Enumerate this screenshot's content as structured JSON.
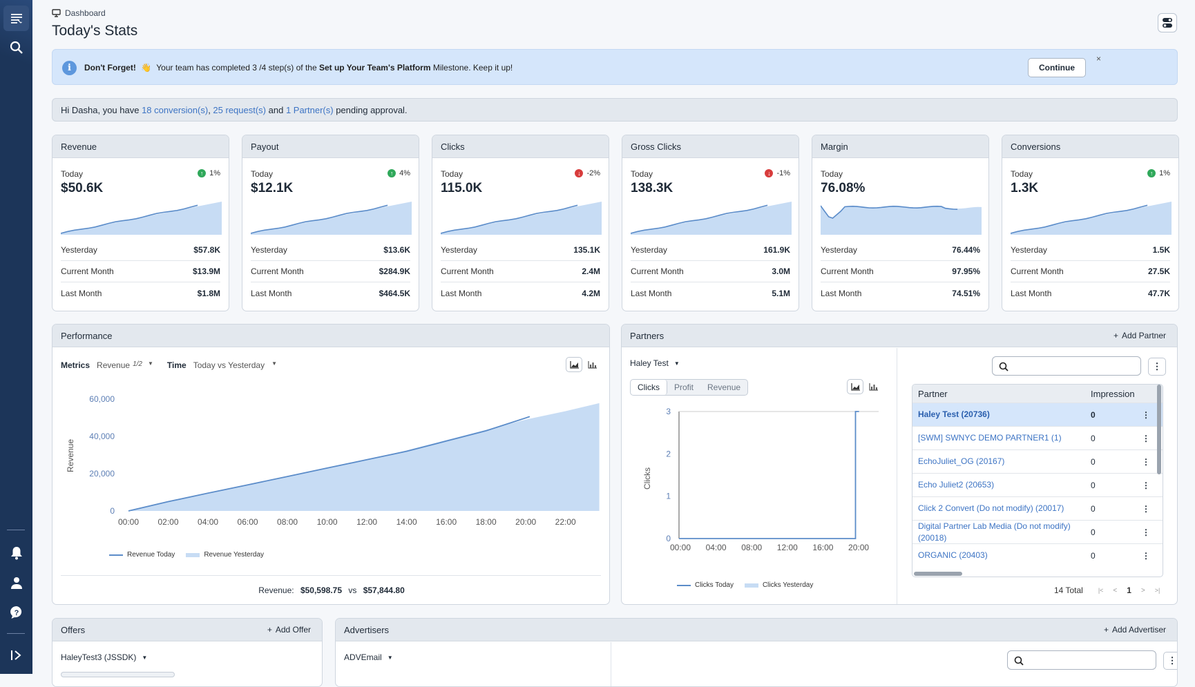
{
  "breadcrumb": "Dashboard",
  "page_title": "Today's Stats",
  "banner": {
    "prefix": "Don't Forget!",
    "emoji": "👋",
    "text_a": "Your team has completed 3 /4 step(s) of the ",
    "milestone": "Set up Your Team's Platform",
    "text_b": " Milestone. Keep it up!",
    "continue_label": "Continue",
    "close": "×"
  },
  "pending": {
    "a": "Hi Dasha, you have ",
    "conversions": "18 conversion(s)",
    "sep1": ", ",
    "requests": "25 request(s)",
    "and": " and ",
    "partners": "1 Partner(s)",
    "tail": " pending approval."
  },
  "stats": [
    {
      "title": "Revenue",
      "today_label": "Today",
      "change": "1%",
      "trend": "up",
      "value": "$50.6K",
      "rows": [
        {
          "k": "Yesterday",
          "v": "$57.8K"
        },
        {
          "k": "Current Month",
          "v": "$13.9M"
        },
        {
          "k": "Last Month",
          "v": "$1.8M"
        }
      ]
    },
    {
      "title": "Payout",
      "today_label": "Today",
      "change": "4%",
      "trend": "up",
      "value": "$12.1K",
      "rows": [
        {
          "k": "Yesterday",
          "v": "$13.6K"
        },
        {
          "k": "Current Month",
          "v": "$284.9K"
        },
        {
          "k": "Last Month",
          "v": "$464.5K"
        }
      ]
    },
    {
      "title": "Clicks",
      "today_label": "Today",
      "change": "-2%",
      "trend": "down",
      "value": "115.0K",
      "rows": [
        {
          "k": "Yesterday",
          "v": "135.1K"
        },
        {
          "k": "Current Month",
          "v": "2.4M"
        },
        {
          "k": "Last Month",
          "v": "4.2M"
        }
      ]
    },
    {
      "title": "Gross Clicks",
      "today_label": "Today",
      "change": "-1%",
      "trend": "down",
      "value": "138.3K",
      "rows": [
        {
          "k": "Yesterday",
          "v": "161.9K"
        },
        {
          "k": "Current Month",
          "v": "3.0M"
        },
        {
          "k": "Last Month",
          "v": "5.1M"
        }
      ]
    },
    {
      "title": "Margin",
      "today_label": "Today",
      "change": "",
      "trend": "none",
      "value": "76.08%",
      "rows": [
        {
          "k": "Yesterday",
          "v": "76.44%"
        },
        {
          "k": "Current Month",
          "v": "97.95%"
        },
        {
          "k": "Last Month",
          "v": "74.51%"
        }
      ]
    },
    {
      "title": "Conversions",
      "today_label": "Today",
      "change": "1%",
      "trend": "up",
      "value": "1.3K",
      "rows": [
        {
          "k": "Yesterday",
          "v": "1.5K"
        },
        {
          "k": "Current Month",
          "v": "27.5K"
        },
        {
          "k": "Last Month",
          "v": "47.7K"
        }
      ]
    }
  ],
  "performance": {
    "title": "Performance",
    "metrics_label": "Metrics",
    "metrics_value": "Revenue",
    "metrics_count": "1/2",
    "time_label": "Time",
    "time_value": "Today vs Yesterday",
    "legend_today": "Revenue Today",
    "legend_yesterday": "Revenue Yesterday",
    "summary_label": "Revenue:",
    "summary_today": "$50,598.75",
    "summary_vs": "vs",
    "summary_yesterday": "$57,844.80"
  },
  "partners": {
    "title": "Partners",
    "add_label": "Add Partner",
    "selected_partner": "Haley Test",
    "segments": [
      "Clicks",
      "Profit",
      "Revenue"
    ],
    "legend_today": "Clicks Today",
    "legend_yesterday": "Clicks Yesterday",
    "col_partner": "Partner",
    "col_impressions": "Impression",
    "rows": [
      {
        "name": "Haley Test (20736)",
        "impressions": "0"
      },
      {
        "name": "[SWM] SWNYC DEMO PARTNER1 (1)",
        "impressions": "0"
      },
      {
        "name": "EchoJuliet_OG (20167)",
        "impressions": "0"
      },
      {
        "name": "Echo Juliet2 (20653)",
        "impressions": "0"
      },
      {
        "name": "Click 2 Convert (Do not modify) (20017)",
        "impressions": "0"
      },
      {
        "name": "Digital Partner Lab Media (Do not modify) (20018)",
        "impressions": "0"
      },
      {
        "name": "ORGANIC (20403)",
        "impressions": "0"
      }
    ],
    "total": "14 Total",
    "page": "1"
  },
  "offers": {
    "title": "Offers",
    "add_label": "Add Offer",
    "selected": "HaleyTest3 (JSSDK)"
  },
  "advertisers": {
    "title": "Advertisers",
    "add_label": "Add Advertiser",
    "selected": "ADVEmail"
  },
  "chart_data": [
    {
      "type": "area",
      "title": "",
      "xlabel": "",
      "ylabel": "Revenue",
      "x_ticks": [
        "00:00",
        "02:00",
        "04:00",
        "06:00",
        "08:00",
        "10:00",
        "12:00",
        "14:00",
        "16:00",
        "18:00",
        "20:00",
        "22:00"
      ],
      "y_ticks": [
        "0",
        "20,000",
        "40,000",
        "60,000"
      ],
      "ylim": [
        0,
        60000
      ],
      "series": [
        {
          "name": "Revenue Today",
          "type": "line",
          "x": [
            0,
            2,
            4,
            6,
            8,
            10,
            12,
            14,
            16,
            18,
            20.2
          ],
          "y": [
            0,
            5000,
            9500,
            14000,
            18500,
            23000,
            27500,
            32000,
            37500,
            43000,
            50600
          ]
        },
        {
          "name": "Revenue Yesterday",
          "type": "area",
          "x": [
            0,
            2,
            4,
            6,
            8,
            10,
            12,
            14,
            16,
            18,
            20,
            22,
            23.7
          ],
          "y": [
            0,
            4800,
            9200,
            13800,
            18300,
            22800,
            27300,
            32500,
            38000,
            43500,
            49000,
            53500,
            57800
          ]
        }
      ]
    },
    {
      "type": "line",
      "title": "",
      "xlabel": "",
      "ylabel": "Clicks",
      "x_ticks": [
        "00:00",
        "04:00",
        "08:00",
        "12:00",
        "16:00",
        "20:00"
      ],
      "y_ticks": [
        "0",
        "1",
        "2",
        "3"
      ],
      "ylim": [
        0,
        3
      ],
      "series": [
        {
          "name": "Clicks Today",
          "x": [
            0,
            19.8,
            19.8,
            20.2
          ],
          "y": [
            0,
            0,
            3,
            3
          ]
        },
        {
          "name": "Clicks Yesterday",
          "x": [],
          "y": []
        }
      ]
    }
  ]
}
